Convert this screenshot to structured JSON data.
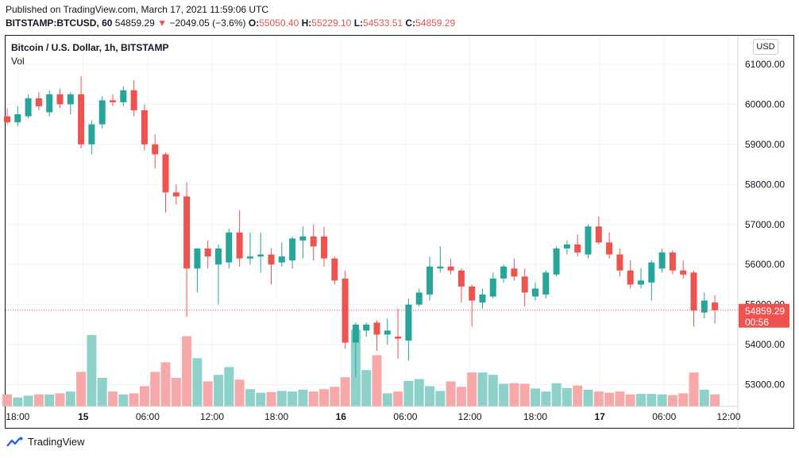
{
  "header": {
    "published": "Published on TradingView.com, March 17, 2021 11:59:06 UTC",
    "symbol": "BITSTAMP:BTCUSD, 60",
    "last": "54859.29",
    "arrow": "▼",
    "change": "−2049.05 (−3.6%)",
    "o_label": "O:",
    "o_val": "55050.40",
    "h_label": "H:",
    "h_val": "55229.10",
    "l_label": "L:",
    "l_val": "54533.51",
    "c_label": "C:",
    "c_val": "54859.29"
  },
  "legend": {
    "title": "Bitcoin / U.S. Dollar, 1h, BITSTAMP",
    "vol": "Vol"
  },
  "currency_button": "USD",
  "price_badge": {
    "price": "54859.29",
    "countdown": "00:56"
  },
  "brand": "TradingView",
  "colors": {
    "up": "#26a69a",
    "down": "#ef5350",
    "vol_up": "#8ed1cb",
    "vol_down": "#f6a9a8",
    "grid": "#f0f3fa"
  },
  "chart_data": {
    "type": "candlestick",
    "title": "Bitcoin / U.S. Dollar, 1h, BITSTAMP",
    "ylim": [
      52500,
      61500
    ],
    "y_ticks": [
      53000,
      54000,
      55000,
      56000,
      57000,
      58000,
      59000,
      60000,
      61000
    ],
    "y_tick_labels": [
      "53000.00",
      "54000.00",
      "55000.00",
      "56000.00",
      "57000.00",
      "58000.00",
      "59000.00",
      "60000.00",
      "61000.00"
    ],
    "x_tick_index": [
      1,
      7.2,
      13.3,
      19.4,
      25.5,
      31.6,
      37.7,
      43.8,
      50,
      56.1,
      62.2,
      68.3
    ],
    "x_tick_labels": [
      "18:00",
      "15",
      "06:00",
      "12:00",
      "18:00",
      "16",
      "06:00",
      "12:00",
      "18:00",
      "17",
      "06:00",
      "12:00"
    ],
    "candles": [
      {
        "o": 59700,
        "h": 59900,
        "l": 59500,
        "c": 59550
      },
      {
        "o": 59550,
        "h": 59950,
        "l": 59450,
        "c": 59750
      },
      {
        "o": 59700,
        "h": 60250,
        "l": 59650,
        "c": 60150
      },
      {
        "o": 60150,
        "h": 60300,
        "l": 59850,
        "c": 59950
      },
      {
        "o": 59800,
        "h": 60350,
        "l": 59700,
        "c": 60250
      },
      {
        "o": 60250,
        "h": 60400,
        "l": 59900,
        "c": 60000
      },
      {
        "o": 60000,
        "h": 60300,
        "l": 59750,
        "c": 60250
      },
      {
        "o": 60250,
        "h": 60700,
        "l": 58900,
        "c": 59000
      },
      {
        "o": 59000,
        "h": 59600,
        "l": 58750,
        "c": 59500
      },
      {
        "o": 59500,
        "h": 60200,
        "l": 59400,
        "c": 60100
      },
      {
        "o": 60100,
        "h": 60250,
        "l": 59950,
        "c": 60050
      },
      {
        "o": 60050,
        "h": 60450,
        "l": 59950,
        "c": 60350
      },
      {
        "o": 60350,
        "h": 60600,
        "l": 59700,
        "c": 59850
      },
      {
        "o": 59850,
        "h": 60000,
        "l": 58850,
        "c": 59000
      },
      {
        "o": 59000,
        "h": 59250,
        "l": 58400,
        "c": 58750
      },
      {
        "o": 58750,
        "h": 58800,
        "l": 57300,
        "c": 57800
      },
      {
        "o": 57800,
        "h": 58000,
        "l": 57500,
        "c": 57700
      },
      {
        "o": 57700,
        "h": 58050,
        "l": 54700,
        "c": 55900
      },
      {
        "o": 55900,
        "h": 56400,
        "l": 55300,
        "c": 56400
      },
      {
        "o": 56400,
        "h": 56600,
        "l": 55900,
        "c": 56200
      },
      {
        "o": 56000,
        "h": 56500,
        "l": 55000,
        "c": 56400
      },
      {
        "o": 56050,
        "h": 56900,
        "l": 55900,
        "c": 56800
      },
      {
        "o": 56800,
        "h": 57350,
        "l": 55950,
        "c": 56150
      },
      {
        "o": 56150,
        "h": 56800,
        "l": 56000,
        "c": 56200
      },
      {
        "o": 56200,
        "h": 56800,
        "l": 55800,
        "c": 56250
      },
      {
        "o": 56250,
        "h": 56400,
        "l": 55500,
        "c": 56000
      },
      {
        "o": 56050,
        "h": 56550,
        "l": 55950,
        "c": 56200
      },
      {
        "o": 56100,
        "h": 56700,
        "l": 55900,
        "c": 56650
      },
      {
        "o": 56600,
        "h": 56950,
        "l": 56150,
        "c": 56700
      },
      {
        "o": 56700,
        "h": 57000,
        "l": 56100,
        "c": 56450
      },
      {
        "o": 56700,
        "h": 56950,
        "l": 55950,
        "c": 56150
      },
      {
        "o": 56150,
        "h": 56200,
        "l": 55500,
        "c": 55600
      },
      {
        "o": 55650,
        "h": 55850,
        "l": 53900,
        "c": 54050
      },
      {
        "o": 54050,
        "h": 54550,
        "l": 53200,
        "c": 54500
      },
      {
        "o": 54350,
        "h": 54550,
        "l": 54200,
        "c": 54500
      },
      {
        "o": 54550,
        "h": 54600,
        "l": 53850,
        "c": 54250
      },
      {
        "o": 54250,
        "h": 54650,
        "l": 54000,
        "c": 54350
      },
      {
        "o": 54200,
        "h": 54900,
        "l": 53650,
        "c": 54150
      },
      {
        "o": 54100,
        "h": 55150,
        "l": 53600,
        "c": 55000
      },
      {
        "o": 55000,
        "h": 55400,
        "l": 54950,
        "c": 55300
      },
      {
        "o": 55250,
        "h": 56200,
        "l": 55100,
        "c": 55950
      },
      {
        "o": 55900,
        "h": 56450,
        "l": 55800,
        "c": 55950
      },
      {
        "o": 55950,
        "h": 56150,
        "l": 55750,
        "c": 55850
      },
      {
        "o": 55850,
        "h": 55900,
        "l": 55050,
        "c": 55450
      },
      {
        "o": 55450,
        "h": 55500,
        "l": 54450,
        "c": 55100
      },
      {
        "o": 55050,
        "h": 55400,
        "l": 54900,
        "c": 55250
      },
      {
        "o": 55200,
        "h": 55800,
        "l": 55150,
        "c": 55650
      },
      {
        "o": 55650,
        "h": 56000,
        "l": 55550,
        "c": 55950
      },
      {
        "o": 55900,
        "h": 56150,
        "l": 55600,
        "c": 55700
      },
      {
        "o": 55700,
        "h": 55900,
        "l": 54950,
        "c": 55300
      },
      {
        "o": 55200,
        "h": 55550,
        "l": 55100,
        "c": 55400
      },
      {
        "o": 55250,
        "h": 55850,
        "l": 55150,
        "c": 55800
      },
      {
        "o": 55750,
        "h": 56450,
        "l": 55700,
        "c": 56400
      },
      {
        "o": 56400,
        "h": 56600,
        "l": 56250,
        "c": 56500
      },
      {
        "o": 56500,
        "h": 56750,
        "l": 56200,
        "c": 56300
      },
      {
        "o": 56250,
        "h": 57000,
        "l": 56150,
        "c": 56950
      },
      {
        "o": 56950,
        "h": 57200,
        "l": 56500,
        "c": 56550
      },
      {
        "o": 56550,
        "h": 56800,
        "l": 56150,
        "c": 56250
      },
      {
        "o": 56250,
        "h": 56400,
        "l": 55700,
        "c": 55850
      },
      {
        "o": 55850,
        "h": 56100,
        "l": 55400,
        "c": 55500
      },
      {
        "o": 55500,
        "h": 55900,
        "l": 55400,
        "c": 55600
      },
      {
        "o": 55550,
        "h": 56100,
        "l": 55100,
        "c": 56050
      },
      {
        "o": 55900,
        "h": 56400,
        "l": 55800,
        "c": 56300
      },
      {
        "o": 56300,
        "h": 56350,
        "l": 55750,
        "c": 55850
      },
      {
        "o": 55850,
        "h": 56100,
        "l": 55650,
        "c": 55750
      },
      {
        "o": 55800,
        "h": 55850,
        "l": 54450,
        "c": 54850
      },
      {
        "o": 54800,
        "h": 55300,
        "l": 54650,
        "c": 55100
      },
      {
        "o": 55050,
        "h": 55230,
        "l": 54530,
        "c": 54860
      }
    ],
    "volumes": [
      2,
      1.5,
      1.8,
      2,
      2,
      2.2,
      2.5,
      5.8,
      12,
      4.8,
      2.5,
      2,
      2.2,
      3.4,
      5.8,
      7.4,
      4.8,
      11.8,
      8.1,
      4.2,
      5.3,
      6.6,
      4.5,
      2.9,
      2.3,
      2.4,
      2.6,
      2.5,
      2.8,
      2.5,
      2.9,
      3.3,
      4.9,
      12.9,
      6.1,
      8.6,
      2.2,
      2.5,
      4.3,
      4.6,
      3.4,
      2.6,
      4.2,
      3.3,
      5.7,
      5.7,
      5.3,
      3.8,
      3.9,
      3.8,
      3.0,
      2.5,
      3.9,
      3.1,
      3.5,
      2.8,
      2.5,
      2.3,
      2.5,
      2.0,
      2.1,
      2.1,
      2.0,
      1.9,
      2.2,
      5.7,
      2.8,
      2.0
    ],
    "current_price": 54859.29
  }
}
